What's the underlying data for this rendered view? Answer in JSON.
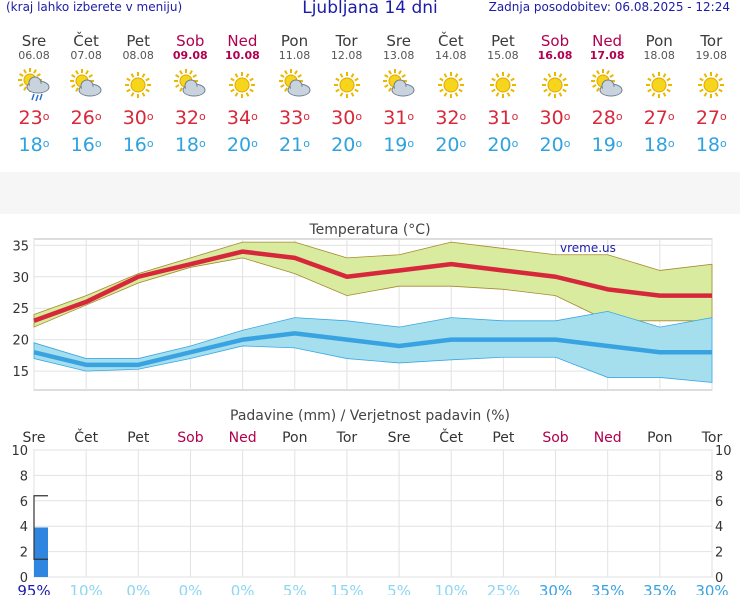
{
  "header": {
    "left": "(kraj lahko izberete v meniju)",
    "title": "Ljubljana 14 dni",
    "right": "Zadnja posodobitev: 06.08.2025 - 12:24"
  },
  "days": [
    {
      "name": "Sre",
      "date": "06.08",
      "weekend": false,
      "icon": "sun-cloud-rain-icon",
      "max": "23",
      "min": "18"
    },
    {
      "name": "Čet",
      "date": "07.08",
      "weekend": false,
      "icon": "sun-cloud-icon",
      "max": "26",
      "min": "16"
    },
    {
      "name": "Pet",
      "date": "08.08",
      "weekend": false,
      "icon": "sun-icon",
      "max": "30",
      "min": "16"
    },
    {
      "name": "Sob",
      "date": "09.08",
      "weekend": true,
      "icon": "sun-cloud-icon",
      "max": "32",
      "min": "18"
    },
    {
      "name": "Ned",
      "date": "10.08",
      "weekend": true,
      "icon": "sun-icon",
      "max": "34",
      "min": "20"
    },
    {
      "name": "Pon",
      "date": "11.08",
      "weekend": false,
      "icon": "sun-cloud-icon",
      "max": "33",
      "min": "21"
    },
    {
      "name": "Tor",
      "date": "12.08",
      "weekend": false,
      "icon": "sun-icon",
      "max": "30",
      "min": "20"
    },
    {
      "name": "Sre",
      "date": "13.08",
      "weekend": false,
      "icon": "sun-cloud-icon",
      "max": "31",
      "min": "19"
    },
    {
      "name": "Čet",
      "date": "14.08",
      "weekend": false,
      "icon": "sun-icon",
      "max": "32",
      "min": "20"
    },
    {
      "name": "Pet",
      "date": "15.08",
      "weekend": false,
      "icon": "sun-icon",
      "max": "31",
      "min": "20"
    },
    {
      "name": "Sob",
      "date": "16.08",
      "weekend": true,
      "icon": "sun-icon",
      "max": "30",
      "min": "20"
    },
    {
      "name": "Ned",
      "date": "17.08",
      "weekend": true,
      "icon": "sun-cloud-icon",
      "max": "28",
      "min": "19"
    },
    {
      "name": "Pon",
      "date": "18.08",
      "weekend": false,
      "icon": "sun-icon",
      "max": "27",
      "min": "18"
    },
    {
      "name": "Tor",
      "date": "19.08",
      "weekend": false,
      "icon": "sun-icon",
      "max": "27",
      "min": "18"
    }
  ],
  "degree_symbol": "o",
  "chart_data": [
    {
      "type": "line",
      "title": "Temperatura (°C)",
      "watermark": "vreme.us",
      "ylim": [
        12,
        36
      ],
      "yticks": [
        15,
        20,
        25,
        30,
        35
      ],
      "grid": true,
      "series": [
        {
          "key": "max",
          "values": [
            23,
            26,
            30,
            32,
            34,
            33,
            30,
            31,
            32,
            31,
            30,
            28,
            27,
            27
          ],
          "color": "#d6283a"
        },
        {
          "key": "max_band_high",
          "values": [
            24,
            27,
            30.5,
            33,
            35.5,
            35.5,
            33,
            33.5,
            35.5,
            34.5,
            33.5,
            33.5,
            31,
            32
          ],
          "color": "#d4e89a"
        },
        {
          "key": "max_band_low",
          "values": [
            22,
            25.5,
            29,
            31.5,
            33,
            30.5,
            27,
            28.5,
            28.5,
            28,
            27,
            23,
            23,
            23
          ],
          "color": "#d4e89a"
        },
        {
          "key": "min",
          "values": [
            18,
            16,
            16,
            18,
            20,
            21,
            20,
            19,
            20,
            20,
            20,
            19,
            18,
            18
          ],
          "color": "#39a3e2"
        },
        {
          "key": "min_band_high",
          "values": [
            19.5,
            17,
            17,
            19,
            21.5,
            23.5,
            23,
            22,
            23.5,
            23,
            23,
            24.5,
            22,
            23.5
          ],
          "color": "#9fdcea"
        },
        {
          "key": "min_band_low",
          "values": [
            17,
            15,
            15.3,
            17,
            19,
            18.7,
            17,
            16.3,
            16.8,
            17.2,
            17.2,
            14,
            14,
            13.2
          ],
          "color": "#9fdcea"
        }
      ]
    },
    {
      "type": "bar",
      "title": "Padavine (mm) / Verjetnost padavin (%)",
      "categories": [
        "Sre",
        "Čet",
        "Pet",
        "Sob",
        "Ned",
        "Pon",
        "Tor",
        "Sre",
        "Čet",
        "Pet",
        "Sob",
        "Ned",
        "Pon",
        "Tor"
      ],
      "weekend": [
        false,
        false,
        false,
        true,
        true,
        false,
        false,
        false,
        false,
        false,
        true,
        true,
        false,
        false
      ],
      "ylim": [
        0,
        10
      ],
      "yticks": [
        0,
        2,
        4,
        6,
        8,
        10
      ],
      "precip_mm": [
        3.9,
        0,
        0,
        0,
        0,
        0,
        0,
        0,
        0,
        0,
        0,
        0,
        0,
        0
      ],
      "precip_range": [
        [
          1.4,
          6.4
        ]
      ],
      "probability": [
        "95%",
        "10%",
        "0%",
        "0%",
        "0%",
        "5%",
        "15%",
        "5%",
        "10%",
        "25%",
        "30%",
        "35%",
        "35%",
        "30%"
      ],
      "prob_colors": {
        "high": "#1c1ca8",
        "low": "#8ed6f0",
        "mid": "#39a3e2"
      }
    }
  ]
}
